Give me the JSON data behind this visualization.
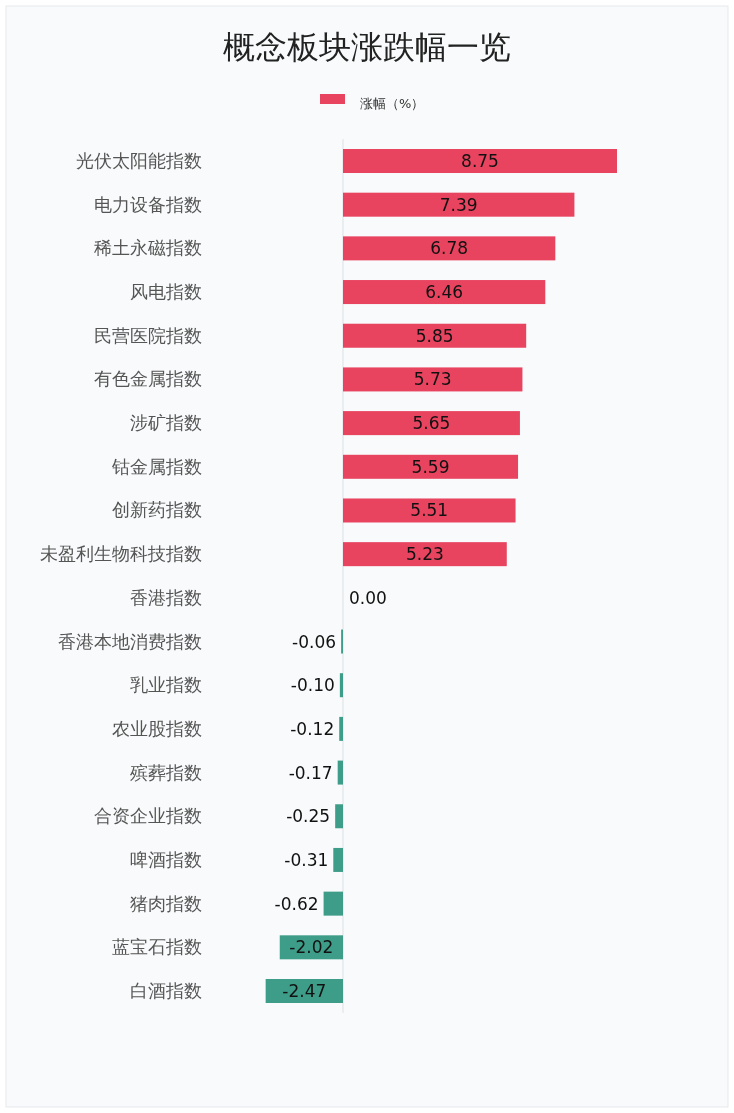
{
  "chart_data": {
    "type": "bar",
    "orientation": "horizontal",
    "title": "概念板块涨跌幅一览",
    "legend": "top",
    "categories": [
      "光伏太阳能指数",
      "电力设备指数",
      "稀土永磁指数",
      "风电指数",
      "民营医院指数",
      "有色金属指数",
      "涉矿指数",
      "钴金属指数",
      "创新药指数",
      "未盈利生物科技指数",
      "香港指数",
      "香港本地消费指数",
      "乳业指数",
      "农业股指数",
      "殡葬指数",
      "合资企业指数",
      "啤酒指数",
      "猪肉指数",
      "蓝宝石指数",
      "白酒指数"
    ],
    "series": [
      {
        "name": "涨幅（%）",
        "color": "#e8435f",
        "values": [
          8.75,
          7.39,
          6.78,
          6.46,
          5.85,
          5.73,
          5.65,
          5.59,
          5.51,
          5.23,
          0.0,
          -0.06,
          -0.1,
          -0.12,
          -0.17,
          -0.25,
          -0.31,
          -0.62,
          -2.02,
          -2.47
        ],
        "colors": [
          "#e8435f",
          "#e8435f",
          "#e8435f",
          "#e8435f",
          "#e8435f",
          "#e8435f",
          "#e8435f",
          "#e8435f",
          "#e8435f",
          "#e8435f",
          "#e8435f",
          "#3e9d88",
          "#3e9d88",
          "#3e9d88",
          "#3e9d88",
          "#3e9d88",
          "#3e9d88",
          "#3e9d88",
          "#3e9d88",
          "#3e9d88"
        ],
        "value_labels": [
          "8.75",
          "7.39",
          "6.78",
          "6.46",
          "5.85",
          "5.73",
          "5.65",
          "5.59",
          "5.51",
          "5.23",
          "0.00",
          "-0.06",
          "-0.10",
          "-0.12",
          "-0.17",
          "-0.25",
          "-0.31",
          "-0.62",
          "-2.02",
          "-2.47"
        ]
      }
    ]
  }
}
